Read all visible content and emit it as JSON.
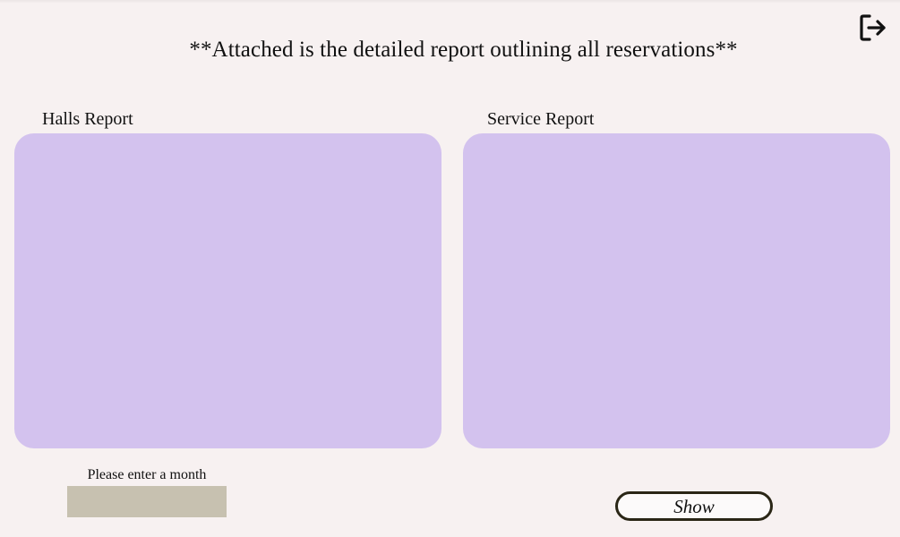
{
  "header": {
    "title": "**Attached is the detailed report outlining all reservations**",
    "logout_icon": "logout-icon"
  },
  "reports": {
    "halls_label": "Halls Report",
    "service_label": "Service Report",
    "panel_color": "#d3c2ee"
  },
  "filter": {
    "month_label": "Please enter a month",
    "month_value": "",
    "show_label": "Show"
  },
  "colors": {
    "background": "#f7f1f1",
    "input_background": "#c7c1b0",
    "button_border": "#2a2616"
  }
}
